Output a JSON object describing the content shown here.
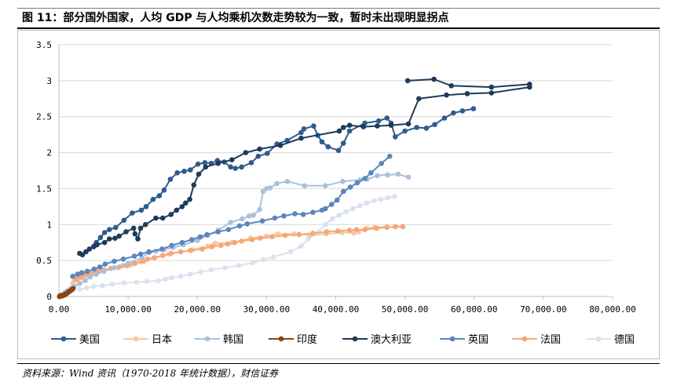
{
  "figure": {
    "title": "图 11：部分国外国家，人均 GDP 与人均乘机次数走势较为一致，暂时未出现明显拐点",
    "source": "资料来源：Wind 资讯（1970-2018 年统计数据），财信证券"
  },
  "chart_data": {
    "type": "scatter",
    "style": "line-with-markers",
    "title": "",
    "xlabel": "",
    "ylabel": "",
    "xlim": [
      0,
      80000
    ],
    "ylim": [
      0,
      3.5
    ],
    "x_ticks": [
      "0.00",
      "10,000.00",
      "20,000.00",
      "30,000.00",
      "40,000.00",
      "50,000.00",
      "60,000.00",
      "70,000.00",
      "80,000.00"
    ],
    "y_ticks": [
      "0",
      "0.5",
      "1",
      "1.5",
      "2",
      "2.5",
      "3",
      "3.5"
    ],
    "legend_position": "bottom",
    "series": [
      {
        "name": "美国",
        "color": "#2e5c8e",
        "x": [
          5000,
          5400,
          6000,
          6600,
          7300,
          8200,
          9400,
          10600,
          11900,
          12600,
          13600,
          14500,
          15200,
          16100,
          17100,
          18100,
          19000,
          20100,
          21100,
          22000,
          22900,
          23900,
          24800,
          25500,
          26400,
          27800,
          28800,
          30100,
          31500,
          33000,
          35000,
          35400,
          36800,
          37400,
          38000,
          38900,
          40400,
          41100,
          42000,
          44200,
          46200,
          47400,
          48000,
          48600,
          50000,
          51700,
          53100,
          54300,
          55700,
          57000,
          58300,
          59900
        ],
        "y": [
          0.69,
          0.75,
          0.82,
          0.89,
          0.93,
          0.96,
          1.06,
          1.16,
          1.2,
          1.25,
          1.35,
          1.4,
          1.48,
          1.63,
          1.72,
          1.74,
          1.76,
          1.84,
          1.86,
          1.85,
          1.89,
          1.87,
          1.8,
          1.78,
          1.8,
          1.86,
          1.95,
          1.99,
          2.12,
          2.17,
          2.28,
          2.33,
          2.37,
          2.24,
          2.15,
          2.08,
          2.03,
          2.13,
          2.3,
          2.41,
          2.44,
          2.48,
          2.41,
          2.22,
          2.3,
          2.35,
          2.34,
          2.39,
          2.48,
          2.55,
          2.58,
          2.61
        ]
      },
      {
        "name": "日本",
        "color": "#f9c6a2",
        "x": [
          2000,
          2200,
          2700,
          3300,
          3700,
          4200,
          4800,
          5100,
          6100,
          8600,
          9200,
          9600,
          10300,
          10600,
          10900,
          11800,
          12300,
          15900,
          19300,
          21500,
          22600,
          25000,
          27700,
          30000,
          31600,
          34000,
          36300,
          38600,
          40900,
          42600,
          43300,
          44500,
          45600,
          47400
        ],
        "y": [
          0.18,
          0.21,
          0.24,
          0.26,
          0.29,
          0.3,
          0.33,
          0.34,
          0.36,
          0.4,
          0.43,
          0.43,
          0.44,
          0.45,
          0.47,
          0.48,
          0.49,
          0.59,
          0.65,
          0.7,
          0.74,
          0.75,
          0.81,
          0.84,
          0.87,
          0.87,
          0.85,
          0.87,
          0.89,
          0.88,
          0.9,
          0.95,
          0.96,
          0.97
        ]
      },
      {
        "name": "韩国",
        "color": "#aac0dc",
        "x": [
          300,
          500,
          700,
          900,
          1200,
          1700,
          2200,
          3000,
          3800,
          4500,
          5400,
          6500,
          8000,
          10000,
          12000,
          13000,
          14000,
          15200,
          16500,
          18000,
          20000,
          21500,
          23000,
          24800,
          26500,
          27500,
          28100,
          29000,
          29500,
          30000,
          30500,
          31500,
          33000,
          35500,
          38500,
          41000,
          43500,
          44500,
          46000,
          47500,
          49000,
          50500
        ],
        "y": [
          0.01,
          0.02,
          0.04,
          0.06,
          0.08,
          0.11,
          0.14,
          0.18,
          0.22,
          0.27,
          0.31,
          0.35,
          0.4,
          0.46,
          0.54,
          0.61,
          0.63,
          0.65,
          0.68,
          0.72,
          0.78,
          0.85,
          0.92,
          1.03,
          1.08,
          1.12,
          1.13,
          1.21,
          1.46,
          1.5,
          1.51,
          1.57,
          1.6,
          1.54,
          1.54,
          1.6,
          1.62,
          1.63,
          1.68,
          1.69,
          1.7,
          1.66
        ]
      },
      {
        "name": "印度",
        "color": "#8b4513",
        "x": [
          80,
          120,
          160,
          200,
          240,
          280,
          320,
          360,
          400,
          450,
          500,
          560,
          620,
          700,
          800,
          900,
          1000,
          1100,
          1200,
          1350,
          1500,
          1650,
          1800,
          1950,
          2050
        ],
        "y": [
          0.0,
          0.0,
          0.01,
          0.01,
          0.01,
          0.01,
          0.01,
          0.01,
          0.01,
          0.01,
          0.01,
          0.01,
          0.02,
          0.02,
          0.02,
          0.03,
          0.03,
          0.04,
          0.05,
          0.06,
          0.07,
          0.08,
          0.09,
          0.1,
          0.11
        ]
      },
      {
        "name": "澳大利亚",
        "color": "#1f3b5c",
        "x": [
          3000,
          3400,
          3900,
          4400,
          5100,
          5500,
          6600,
          7300,
          8100,
          8700,
          9700,
          10800,
          11000,
          11400,
          11800,
          12500,
          14000,
          15000,
          16200,
          17000,
          17800,
          18300,
          18900,
          19500,
          20200,
          21200,
          23000,
          25000,
          27000,
          29000,
          32000,
          35000,
          40500,
          41100,
          42000,
          44000,
          46000,
          48000,
          50500,
          52000,
          56000,
          59000,
          62500,
          68000,
          68000,
          62500,
          56700,
          54200,
          50400
        ],
        "y": [
          0.6,
          0.58,
          0.62,
          0.66,
          0.7,
          0.72,
          0.75,
          0.8,
          0.81,
          0.84,
          0.9,
          0.95,
          0.87,
          0.8,
          0.95,
          1.0,
          1.09,
          1.09,
          1.14,
          1.2,
          1.25,
          1.3,
          1.35,
          1.55,
          1.7,
          1.8,
          1.85,
          1.9,
          2.0,
          2.05,
          2.1,
          2.2,
          2.3,
          2.35,
          2.38,
          2.36,
          2.37,
          2.38,
          2.4,
          2.75,
          2.8,
          2.82,
          2.83,
          2.91,
          2.95,
          2.91,
          2.93,
          3.02,
          3.0
        ]
      },
      {
        "name": "英国",
        "color": "#5c86bd",
        "x": [
          2000,
          2700,
          3300,
          4100,
          5100,
          5900,
          6700,
          8000,
          9300,
          10900,
          11800,
          13000,
          14900,
          16300,
          17800,
          19200,
          20400,
          21400,
          23000,
          24500,
          26100,
          27200,
          29400,
          31200,
          32500,
          34100,
          35300,
          36700,
          38000,
          38500,
          39400,
          40200,
          41100,
          42100,
          43100,
          44200,
          45100,
          46600,
          47800
        ],
        "y": [
          0.28,
          0.31,
          0.33,
          0.35,
          0.38,
          0.41,
          0.45,
          0.49,
          0.52,
          0.56,
          0.59,
          0.62,
          0.66,
          0.71,
          0.75,
          0.79,
          0.83,
          0.86,
          0.9,
          0.93,
          0.98,
          1.01,
          1.05,
          1.09,
          1.12,
          1.15,
          1.14,
          1.17,
          1.2,
          1.22,
          1.28,
          1.34,
          1.46,
          1.52,
          1.58,
          1.64,
          1.72,
          1.85,
          1.95
        ]
      },
      {
        "name": "法国",
        "color": "#f5a776",
        "x": [
          2500,
          3100,
          3800,
          4500,
          5600,
          6500,
          7500,
          8700,
          9900,
          11000,
          12100,
          12800,
          13800,
          15000,
          16200,
          17600,
          19000,
          20700,
          22100,
          23400,
          24400,
          25400,
          26400,
          27900,
          29100,
          30800,
          32700,
          34700,
          36700,
          38700,
          40300,
          42000,
          43000,
          44200,
          45900,
          47400,
          48600,
          49700
        ],
        "y": [
          0.24,
          0.27,
          0.3,
          0.32,
          0.34,
          0.37,
          0.39,
          0.41,
          0.43,
          0.46,
          0.49,
          0.52,
          0.54,
          0.57,
          0.6,
          0.62,
          0.64,
          0.66,
          0.69,
          0.71,
          0.73,
          0.75,
          0.77,
          0.79,
          0.81,
          0.83,
          0.85,
          0.86,
          0.88,
          0.9,
          0.91,
          0.92,
          0.93,
          0.93,
          0.95,
          0.96,
          0.97,
          0.97
        ]
      },
      {
        "name": "德国",
        "color": "#d9e3ef",
        "x": [
          3000,
          4000,
          5000,
          6300,
          7700,
          9400,
          11200,
          12700,
          14300,
          15400,
          16300,
          17600,
          19000,
          20500,
          22000,
          24000,
          26000,
          28000,
          29500,
          31000,
          33500,
          35000,
          36000,
          37500,
          38500,
          39500,
          40500,
          41500,
          42500,
          43500,
          44500,
          45500,
          46500,
          47500,
          48500
        ],
        "y": [
          0.1,
          0.12,
          0.14,
          0.15,
          0.17,
          0.19,
          0.2,
          0.21,
          0.22,
          0.24,
          0.26,
          0.28,
          0.31,
          0.34,
          0.37,
          0.4,
          0.43,
          0.47,
          0.51,
          0.55,
          0.62,
          0.7,
          0.8,
          0.9,
          1.0,
          1.08,
          1.13,
          1.18,
          1.22,
          1.26,
          1.3,
          1.33,
          1.35,
          1.37,
          1.39
        ]
      }
    ]
  }
}
